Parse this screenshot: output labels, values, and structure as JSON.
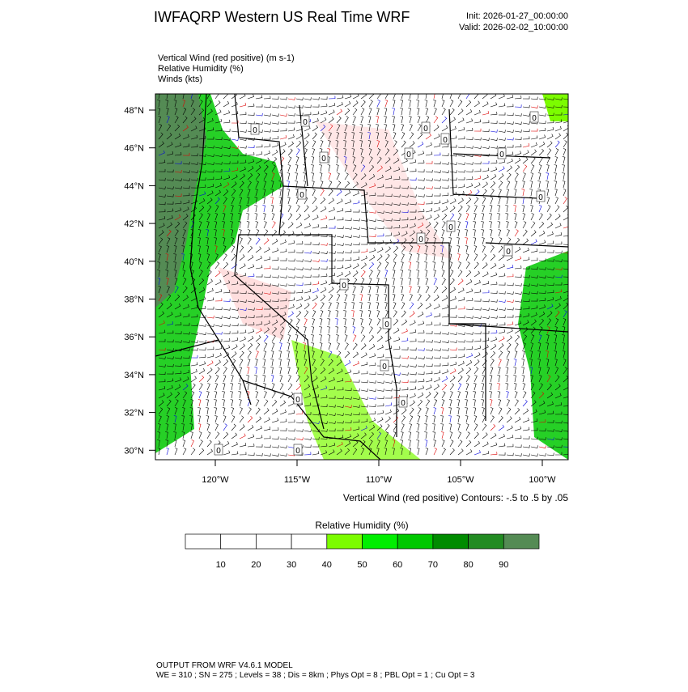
{
  "header": {
    "title": "IWFAQRP Western US Real Time WRF",
    "init": "Init: 2026-01-27_00:00:00",
    "valid": "Valid: 2026-02-02_10:00:00"
  },
  "fields": [
    "Vertical Wind (red positive)   (m s-1)",
    "Relative Humidity   (%)",
    "Winds   (kts)"
  ],
  "lat_labels": [
    "48°N",
    "46°N",
    "44°N",
    "42°N",
    "40°N",
    "38°N",
    "36°N",
    "34°N",
    "32°N",
    "30°N"
  ],
  "lon_labels": [
    "120°W",
    "115°W",
    "110°W",
    "105°W",
    "100°W"
  ],
  "contour_note": "Vertical Wind (red positive) Contours: -.5 to .5 by .05",
  "contour_labels": [
    "0",
    "0",
    "0",
    "0",
    "0",
    "0",
    "0",
    "0",
    "0",
    "0",
    "0",
    "0",
    "0",
    "0",
    "0",
    "0",
    "0",
    "0",
    "0",
    "0"
  ],
  "colorbar": {
    "title": "Relative Humidity  (%)",
    "ticks": [
      "10",
      "20",
      "30",
      "40",
      "50",
      "60",
      "70",
      "80",
      "90"
    ],
    "colors": [
      "#ffffff",
      "#ffffff",
      "#ffffff",
      "#ffffff",
      "#7cfc00",
      "#00ee00",
      "#00c800",
      "#008b00",
      "#228b22",
      "#548b54"
    ]
  },
  "footer": [
    "OUTPUT FROM WRF V4.6.1 MODEL",
    "WE = 310 ; SN = 275 ; Levels = 38 ; Dis = 8km ; Phys Opt = 8 ; PBL Opt = 1 ; Cu Opt = 3"
  ]
}
